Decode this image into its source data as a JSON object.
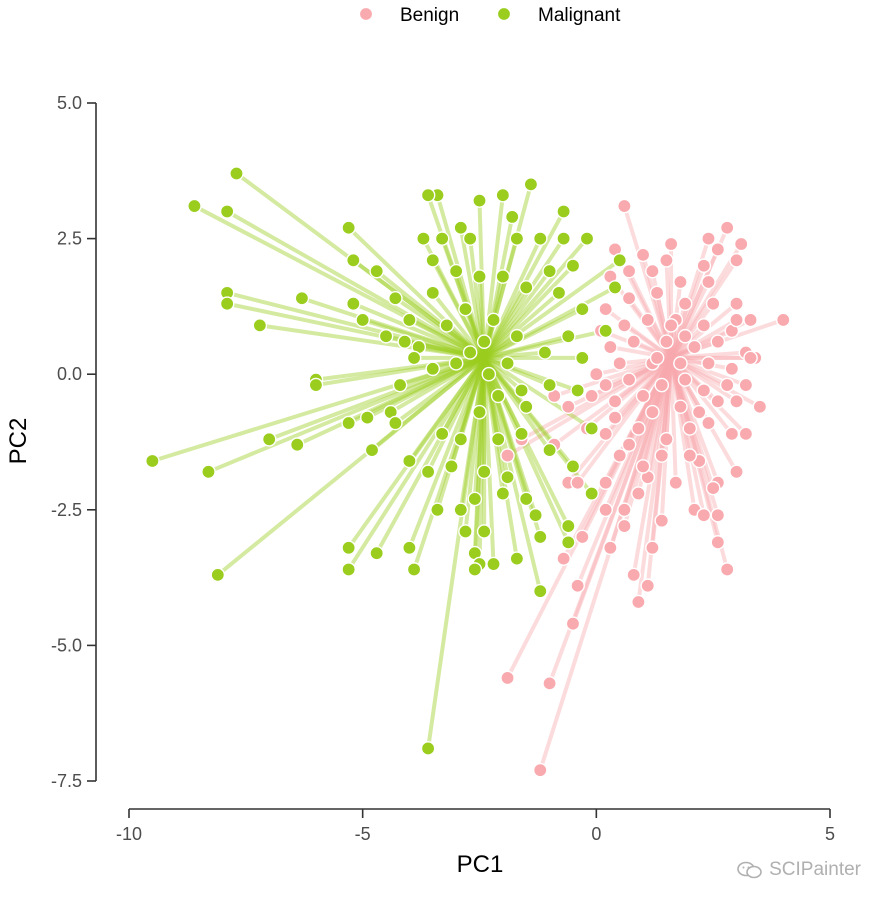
{
  "watermark": {
    "text": "SCIPainter",
    "icon": "wechat-icon"
  },
  "chart_data": {
    "type": "scatter",
    "title": "",
    "xlabel": "PC1",
    "ylabel": "PC2",
    "xlim": [
      -10,
      5
    ],
    "ylim": [
      -7.5,
      5
    ],
    "x_ticks": [
      -10,
      -5,
      0,
      5
    ],
    "x_tick_labels": [
      "-10",
      "-5",
      "0",
      "5"
    ],
    "y_ticks": [
      -7.5,
      -5,
      -2.5,
      0,
      2.5,
      5
    ],
    "y_tick_labels": [
      "-7.5",
      "-5.0",
      "-2.5",
      "0.0",
      "2.5",
      "5.0"
    ],
    "grid": false,
    "legend": {
      "position": "top",
      "entries": [
        "Benign",
        "Malignant"
      ]
    },
    "colors": {
      "Benign": "#F8AAAF",
      "Malignant": "#9ACD1E"
    },
    "series": [
      {
        "name": "Benign",
        "centroid": [
          1.6,
          0.3
        ],
        "points": [
          [
            -1.2,
            -7.3
          ],
          [
            -1.9,
            -5.6
          ],
          [
            -1.0,
            -5.7
          ],
          [
            -0.5,
            -4.6
          ],
          [
            -0.4,
            -3.9
          ],
          [
            -0.7,
            -3.4
          ],
          [
            -0.3,
            -3.0
          ],
          [
            0.3,
            -3.2
          ],
          [
            0.8,
            -3.7
          ],
          [
            1.1,
            -3.9
          ],
          [
            0.9,
            -4.2
          ],
          [
            2.8,
            -3.6
          ],
          [
            2.6,
            -3.1
          ],
          [
            1.2,
            -3.2
          ],
          [
            0.6,
            -2.8
          ],
          [
            1.4,
            -2.7
          ],
          [
            2.1,
            -2.5
          ],
          [
            2.3,
            -2.6
          ],
          [
            2.6,
            -2.6
          ],
          [
            0.6,
            -2.5
          ],
          [
            0.2,
            -2.5
          ],
          [
            -0.6,
            -2.0
          ],
          [
            -0.4,
            -2.0
          ],
          [
            0.2,
            -2.0
          ],
          [
            0.5,
            -1.5
          ],
          [
            1.1,
            -1.9
          ],
          [
            1.7,
            -2.0
          ],
          [
            2.6,
            -2.0
          ],
          [
            2.5,
            -2.1
          ],
          [
            3.0,
            -1.8
          ],
          [
            2.2,
            -1.6
          ],
          [
            1.4,
            -1.5
          ],
          [
            1.0,
            -1.7
          ],
          [
            0.7,
            -1.3
          ],
          [
            0.2,
            -1.1
          ],
          [
            -0.2,
            -1.0
          ],
          [
            -1.6,
            -1.2
          ],
          [
            -1.9,
            -1.5
          ],
          [
            -0.9,
            -1.3
          ],
          [
            0.9,
            -1.0
          ],
          [
            1.5,
            -1.2
          ],
          [
            2.0,
            -1.0
          ],
          [
            2.4,
            -0.9
          ],
          [
            2.9,
            -1.1
          ],
          [
            3.2,
            -1.1
          ],
          [
            3.5,
            -0.6
          ],
          [
            3.0,
            -0.5
          ],
          [
            2.6,
            -0.5
          ],
          [
            1.8,
            -0.6
          ],
          [
            1.2,
            -0.7
          ],
          [
            0.4,
            -0.5
          ],
          [
            -0.1,
            -0.4
          ],
          [
            -0.6,
            -0.6
          ],
          [
            -0.9,
            -0.4
          ],
          [
            0.2,
            -0.2
          ],
          [
            0.7,
            -0.1
          ],
          [
            1.4,
            -0.2
          ],
          [
            1.9,
            -0.1
          ],
          [
            2.3,
            -0.3
          ],
          [
            2.8,
            -0.2
          ],
          [
            3.2,
            -0.2
          ],
          [
            2.9,
            0.1
          ],
          [
            2.4,
            0.2
          ],
          [
            1.8,
            0.2
          ],
          [
            1.2,
            0.2
          ],
          [
            0.5,
            0.2
          ],
          [
            0.0,
            0.0
          ],
          [
            0.3,
            0.5
          ],
          [
            0.8,
            0.6
          ],
          [
            1.5,
            0.6
          ],
          [
            2.1,
            0.5
          ],
          [
            2.6,
            0.6
          ],
          [
            3.2,
            0.4
          ],
          [
            3.4,
            0.3
          ],
          [
            2.9,
            0.8
          ],
          [
            2.3,
            0.9
          ],
          [
            1.7,
            1.0
          ],
          [
            1.1,
            1.0
          ],
          [
            0.6,
            0.9
          ],
          [
            0.1,
            0.8
          ],
          [
            0.2,
            1.2
          ],
          [
            0.7,
            1.4
          ],
          [
            1.3,
            1.5
          ],
          [
            1.9,
            1.3
          ],
          [
            2.5,
            1.3
          ],
          [
            3.0,
            1.0
          ],
          [
            3.3,
            1.0
          ],
          [
            4.0,
            1.0
          ],
          [
            3.0,
            1.3
          ],
          [
            2.4,
            1.7
          ],
          [
            1.8,
            1.7
          ],
          [
            1.2,
            1.9
          ],
          [
            0.7,
            1.9
          ],
          [
            0.3,
            1.8
          ],
          [
            0.4,
            2.3
          ],
          [
            1.0,
            2.2
          ],
          [
            1.5,
            2.1
          ],
          [
            2.3,
            2.0
          ],
          [
            2.6,
            2.3
          ],
          [
            3.0,
            2.1
          ],
          [
            2.4,
            2.5
          ],
          [
            1.6,
            2.4
          ],
          [
            2.8,
            2.7
          ],
          [
            0.6,
            3.1
          ],
          [
            3.1,
            2.4
          ],
          [
            3.3,
            0.3
          ],
          [
            2.0,
            -1.5
          ],
          [
            1.0,
            -0.4
          ],
          [
            1.6,
            0.9
          ],
          [
            0.9,
            -2.2
          ],
          [
            1.3,
            0.3
          ],
          [
            2.2,
            -0.7
          ],
          [
            0.4,
            -0.8
          ],
          [
            1.9,
            0.7
          ]
        ]
      },
      {
        "name": "Malignant",
        "centroid": [
          -2.4,
          0.3
        ],
        "points": [
          [
            -3.6,
            -6.9
          ],
          [
            -8.1,
            -3.7
          ],
          [
            -9.5,
            -1.6
          ],
          [
            -8.3,
            -1.8
          ],
          [
            -7.0,
            -1.2
          ],
          [
            -6.4,
            -1.3
          ],
          [
            -5.3,
            -0.9
          ],
          [
            -6.0,
            -0.1
          ],
          [
            -6.0,
            -0.2
          ],
          [
            -8.6,
            3.1
          ],
          [
            -7.9,
            3.0
          ],
          [
            -7.7,
            3.7
          ],
          [
            -7.9,
            1.5
          ],
          [
            -7.9,
            1.3
          ],
          [
            -7.2,
            0.9
          ],
          [
            -6.3,
            1.4
          ],
          [
            -5.2,
            1.3
          ],
          [
            -5.0,
            1.0
          ],
          [
            -5.2,
            2.1
          ],
          [
            -5.3,
            2.7
          ],
          [
            -4.7,
            1.9
          ],
          [
            -4.3,
            1.4
          ],
          [
            -4.0,
            1.0
          ],
          [
            -4.5,
            0.7
          ],
          [
            -4.1,
            0.6
          ],
          [
            -3.8,
            0.5
          ],
          [
            -3.5,
            1.5
          ],
          [
            -3.5,
            2.1
          ],
          [
            -3.3,
            2.5
          ],
          [
            -3.4,
            3.3
          ],
          [
            -3.6,
            3.3
          ],
          [
            -2.9,
            2.7
          ],
          [
            -2.7,
            2.5
          ],
          [
            -2.5,
            3.2
          ],
          [
            -2.0,
            3.3
          ],
          [
            -1.4,
            3.5
          ],
          [
            -1.7,
            2.5
          ],
          [
            -1.2,
            2.5
          ],
          [
            -0.7,
            3.0
          ],
          [
            -0.2,
            2.5
          ],
          [
            0.5,
            2.1
          ],
          [
            -0.5,
            2.0
          ],
          [
            -1.0,
            1.9
          ],
          [
            -1.5,
            1.6
          ],
          [
            -2.0,
            1.8
          ],
          [
            -2.5,
            1.8
          ],
          [
            -3.0,
            1.9
          ],
          [
            -0.8,
            1.5
          ],
          [
            -0.3,
            1.2
          ],
          [
            0.2,
            0.8
          ],
          [
            -0.6,
            0.7
          ],
          [
            -1.1,
            0.4
          ],
          [
            -1.7,
            0.7
          ],
          [
            -2.2,
            1.0
          ],
          [
            -2.8,
            1.2
          ],
          [
            -3.2,
            0.9
          ],
          [
            -3.9,
            0.3
          ],
          [
            -3.5,
            0.1
          ],
          [
            -4.2,
            -0.2
          ],
          [
            -4.4,
            -0.7
          ],
          [
            -4.9,
            -0.8
          ],
          [
            -4.8,
            -1.4
          ],
          [
            -4.0,
            -1.6
          ],
          [
            -3.6,
            -1.8
          ],
          [
            -3.1,
            -1.7
          ],
          [
            -2.9,
            -1.2
          ],
          [
            -2.5,
            -0.7
          ],
          [
            -2.1,
            -0.4
          ],
          [
            -1.6,
            -0.3
          ],
          [
            -1.0,
            -0.2
          ],
          [
            -0.4,
            -0.3
          ],
          [
            -0.1,
            -1.0
          ],
          [
            -0.5,
            -1.7
          ],
          [
            -1.0,
            -1.4
          ],
          [
            -1.6,
            -1.1
          ],
          [
            -2.1,
            -1.2
          ],
          [
            -2.4,
            -1.8
          ],
          [
            -2.6,
            -2.3
          ],
          [
            -2.8,
            -2.9
          ],
          [
            -2.9,
            -2.5
          ],
          [
            -3.4,
            -2.5
          ],
          [
            -2.6,
            -3.3
          ],
          [
            -2.5,
            -3.5
          ],
          [
            -2.4,
            -2.9
          ],
          [
            -2.0,
            -2.2
          ],
          [
            -1.5,
            -2.3
          ],
          [
            -1.3,
            -2.6
          ],
          [
            -1.2,
            -3.0
          ],
          [
            -1.2,
            -4.0
          ],
          [
            -1.7,
            -3.4
          ],
          [
            -2.2,
            -3.5
          ],
          [
            -2.6,
            -3.6
          ],
          [
            -3.9,
            -3.6
          ],
          [
            -4.7,
            -3.3
          ],
          [
            -4.0,
            -3.2
          ],
          [
            -5.3,
            -3.2
          ],
          [
            -5.3,
            -3.6
          ],
          [
            -0.6,
            -3.1
          ],
          [
            -0.6,
            -2.8
          ],
          [
            -0.1,
            -2.2
          ],
          [
            -3.3,
            -1.1
          ],
          [
            -2.3,
            0.0
          ],
          [
            -2.7,
            0.4
          ],
          [
            -1.9,
            0.2
          ],
          [
            -2.4,
            0.6
          ],
          [
            -3.0,
            0.2
          ],
          [
            -1.5,
            -0.6
          ],
          [
            -3.7,
            2.5
          ],
          [
            -1.8,
            2.9
          ],
          [
            -0.7,
            2.5
          ],
          [
            0.4,
            1.6
          ],
          [
            -0.3,
            0.3
          ],
          [
            -4.3,
            -0.9
          ],
          [
            -1.9,
            -1.9
          ]
        ]
      }
    ]
  }
}
